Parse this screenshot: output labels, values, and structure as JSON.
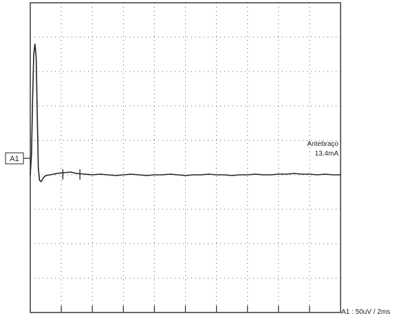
{
  "chart_data": {
    "type": "line",
    "channel_label": "A1",
    "scale_label": "A1 : 50uV / 2ms",
    "annotation": {
      "title": "Antebraço",
      "value": "13.4mA"
    },
    "grid": {
      "divisions_x": 10,
      "divisions_y": 9,
      "dotted": true
    },
    "scale": {
      "x_per_div_ms": 2,
      "y_per_div_uV": 50
    },
    "xlim": [
      0,
      20
    ],
    "ylim": [
      -200,
      250
    ],
    "series": [
      {
        "x": [
          0,
          0.08,
          0.15,
          0.22,
          0.3,
          0.38,
          0.45,
          0.52,
          0.6,
          0.7,
          0.85,
          1.0,
          1.3,
          1.7,
          2.1,
          2.6,
          3.0,
          3.5,
          4.0,
          4.5,
          5.0,
          5.5,
          6.0,
          6.5,
          7.0,
          7.5,
          8.0,
          8.5,
          9.0,
          9.5,
          10.0,
          10.5,
          11.0,
          11.5,
          12.0,
          12.5,
          13.0,
          13.5,
          14.0,
          14.5,
          15.0,
          15.5,
          16.0,
          16.5,
          17.0,
          17.5,
          18.0,
          18.5,
          19.0,
          19.5,
          20.0
        ],
        "y": [
          0,
          30,
          110,
          175,
          190,
          170,
          90,
          10,
          -8,
          -10,
          -4,
          -1,
          0,
          2,
          3,
          4,
          2,
          1,
          0,
          1,
          0,
          -1,
          0,
          1,
          0,
          -1,
          0,
          0,
          1,
          0,
          -1,
          0,
          0,
          1,
          0,
          0,
          -1,
          0,
          0,
          1,
          0,
          0,
          1,
          1,
          2,
          1,
          1,
          0,
          1,
          0,
          0
        ]
      }
    ],
    "cursors_x": [
      2.1,
      3.2
    ]
  }
}
